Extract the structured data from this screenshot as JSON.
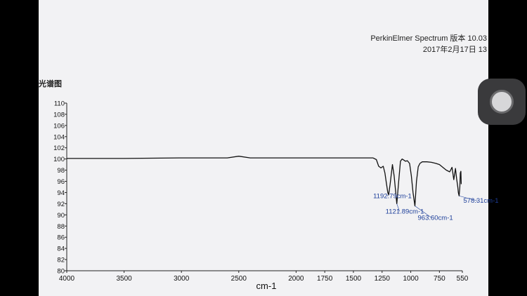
{
  "header": {
    "software": "PerkinElmer Spectrum 版本 10.03",
    "date": "2017年2月17日 13",
    "title_fragment": "光谱图"
  },
  "chart_data": {
    "type": "line",
    "title": "",
    "xlabel": "cm-1",
    "ylabel": "",
    "xlim": [
      4000,
      550
    ],
    "ylim": [
      80,
      110
    ],
    "x_ticks": [
      4000,
      3500,
      3000,
      2500,
      2000,
      1750,
      1500,
      1250,
      1000,
      750,
      550
    ],
    "x_tick_labels": [
      "4000",
      "3500",
      "3000",
      "2500",
      "2000",
      "1750",
      "1500",
      "1250",
      "1000",
      "750",
      "550"
    ],
    "y_ticks": [
      80,
      82,
      84,
      86,
      88,
      90,
      92,
      94,
      96,
      98,
      100,
      102,
      104,
      106,
      108,
      110
    ],
    "y_tick_labels": [
      "80",
      "82",
      "84",
      "86",
      "88",
      "90",
      "92",
      "94",
      "96",
      "98",
      "100",
      "102",
      "104",
      "106",
      "108",
      "110"
    ],
    "grid": false,
    "series": [
      {
        "color": "#111111",
        "x": [
          4000,
          3500,
          3000,
          2600,
          2500,
          2400,
          2000,
          1500,
          1330,
          1300,
          1280,
          1260,
          1240,
          1225,
          1215,
          1200,
          1192.79,
          1180,
          1160,
          1145,
          1121.89,
          1105,
          1090,
          1075,
          1060,
          1045,
          1030,
          1010,
          995,
          980,
          963.6,
          950,
          935,
          920,
          900,
          860,
          820,
          780,
          750,
          720,
          690,
          660,
          640,
          625,
          610,
          600,
          590,
          585,
          578.31,
          572,
          568,
          563,
          560
        ],
        "y": [
          100.1,
          100.1,
          100.2,
          100.2,
          100.5,
          100.2,
          100.2,
          100.2,
          100.2,
          99.9,
          98.7,
          98.4,
          98.7,
          97.5,
          96,
          94,
          93.6,
          95.5,
          99,
          97,
          92.0,
          96,
          99.6,
          100.0,
          99.8,
          99.6,
          99.7,
          99.2,
          97,
          94,
          91.6,
          96,
          98.6,
          99.2,
          99.5,
          99.5,
          99.4,
          99.2,
          99.0,
          98.5,
          98.0,
          97.7,
          98.5,
          96.3,
          98.3,
          96.5,
          95,
          94,
          93.4,
          95,
          97.5,
          97.8,
          95.5
        ]
      }
    ],
    "annotations": [
      {
        "text": "1192.79cm-1",
        "x": 1192.79,
        "y": 93.6
      },
      {
        "text": "1121.89cm-1",
        "x": 1121.89,
        "y": 92.0
      },
      {
        "text": "963.60cm-1",
        "x": 963.6,
        "y": 91.6
      },
      {
        "text": "578.31cm-1",
        "x": 578.31,
        "y": 93.4
      }
    ]
  }
}
